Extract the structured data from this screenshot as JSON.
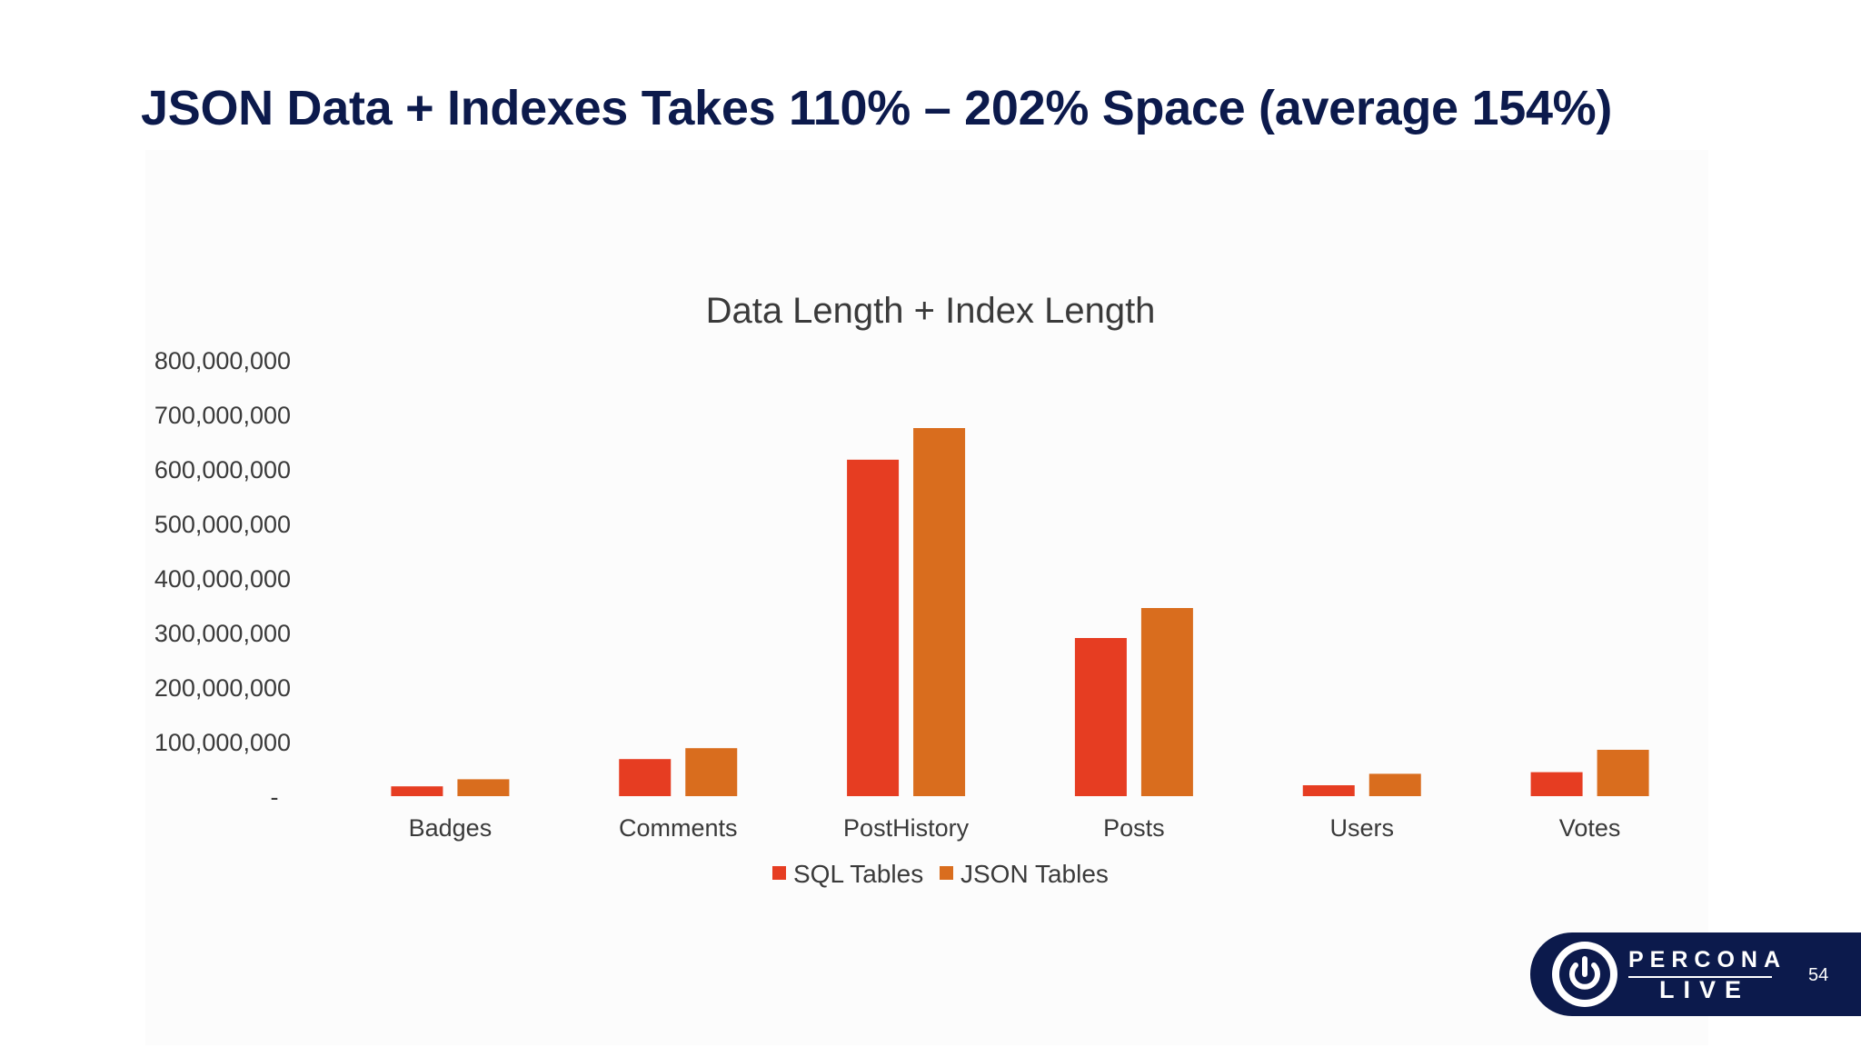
{
  "slide": {
    "title": "JSON Data + Indexes Takes 110% – 202% Space (average 154%)",
    "page_number": "54"
  },
  "logo": {
    "word1": "PERCONA",
    "word2": "LIVE",
    "icon": "power-icon"
  },
  "colors": {
    "title": "#0c1a4c",
    "sql": "#e63d22",
    "json": "#d96d1e",
    "brand": "#0c1a4c",
    "text": "#3a3a3a"
  },
  "chart_data": {
    "type": "bar",
    "title": "Data Length + Index Length",
    "xlabel": "",
    "ylabel": "",
    "categories": [
      "Badges",
      "Comments",
      "PostHistory",
      "Posts",
      "Users",
      "Votes"
    ],
    "series": [
      {
        "name": "SQL Tables",
        "values": [
          18000000,
          68000000,
          617000000,
          290000000,
          20000000,
          44000000
        ]
      },
      {
        "name": "JSON Tables",
        "values": [
          31000000,
          88000000,
          675000000,
          345000000,
          41000000,
          85000000
        ]
      }
    ],
    "ylim": [
      0,
      800000000
    ],
    "ytick_values": [
      0,
      100000000,
      200000000,
      300000000,
      400000000,
      500000000,
      600000000,
      700000000,
      800000000
    ],
    "ytick_labels": [
      "-",
      "100,000,000",
      "200,000,000",
      "300,000,000",
      "400,000,000",
      "500,000,000",
      "600,000,000",
      "700,000,000",
      "800,000,000"
    ],
    "grid": false,
    "legend": "bottom"
  }
}
